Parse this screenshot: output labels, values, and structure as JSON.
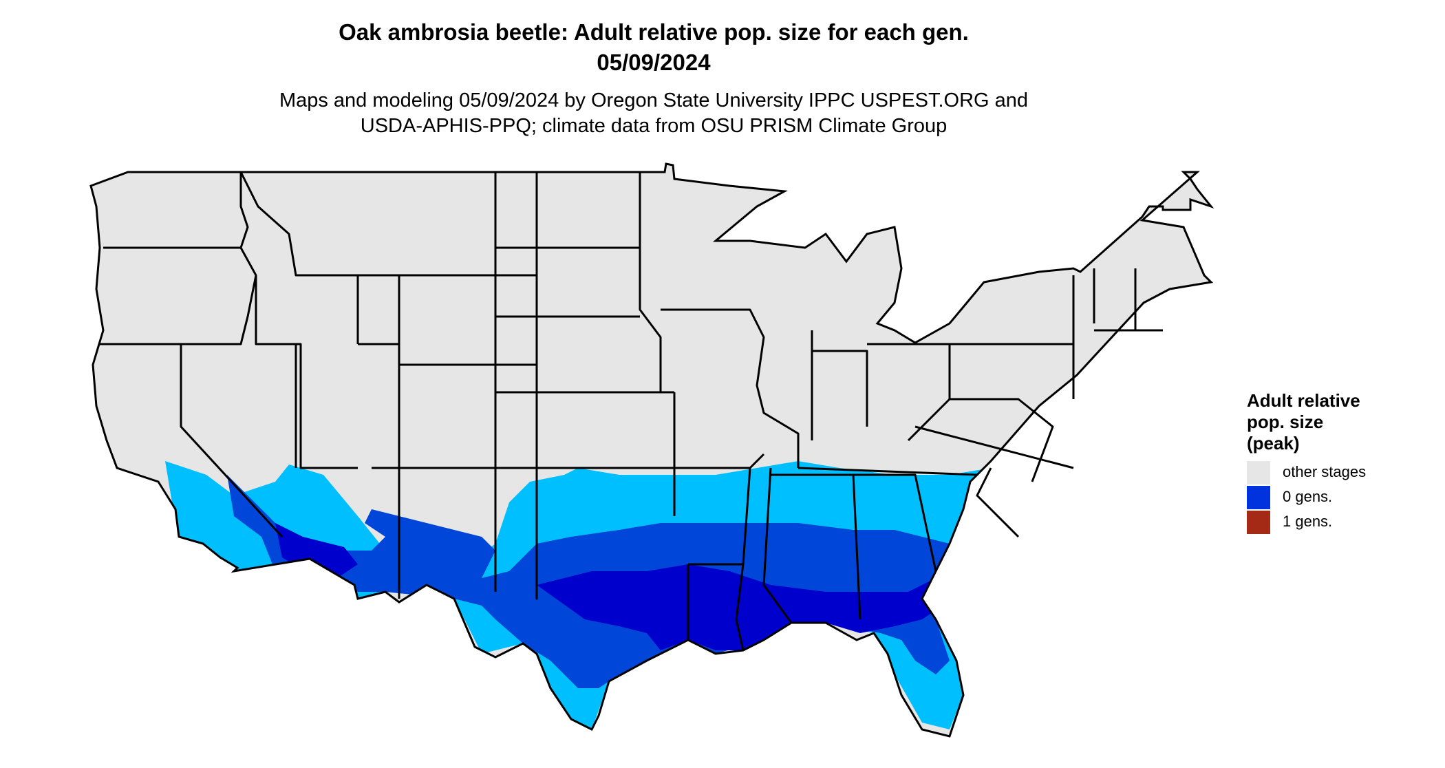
{
  "header": {
    "title_line1": "Oak ambrosia beetle: Adult relative pop. size for each gen.",
    "title_line2": "05/09/2024",
    "subtitle_line1": "Maps and modeling 05/09/2024 by Oregon State University IPPC USPEST.ORG and",
    "subtitle_line2": "USDA-APHIS-PPQ; climate data from OSU PRISM Climate Group"
  },
  "legend": {
    "title_line1": "Adult relative",
    "title_line2": "pop. size",
    "title_line3": "(peak)",
    "items": [
      {
        "label": "other stages",
        "color": "#e6e6e6"
      },
      {
        "label": "0 gens.",
        "color": "#0033dd"
      },
      {
        "label": "1 gens.",
        "color": "#a52a16"
      }
    ]
  },
  "colors": {
    "land": "#e6e6e6",
    "border": "#000000",
    "light_blue": "#00bfff",
    "mid_blue": "#0046d8",
    "dark_blue": "#0000cc"
  }
}
